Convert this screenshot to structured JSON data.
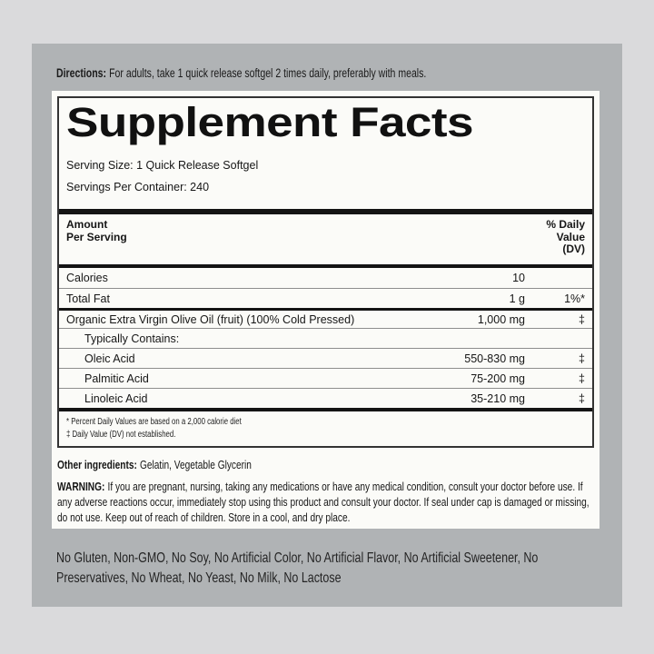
{
  "colors": {
    "page_background": "#dadadc",
    "panel_background": "#b0b3b5",
    "label_background": "#fbfbf8",
    "ink": "#141414",
    "hairline": "#8e8e8e"
  },
  "directions": {
    "label": "Directions:",
    "text": "For adults, take 1 quick release softgel 2 times daily, preferably with meals."
  },
  "label": {
    "title": "Supplement Facts",
    "serving_size": "Serving Size: 1 Quick Release Softgel",
    "servings_per_container": "Servings Per Container: 240",
    "header": {
      "amount_line1": "Amount",
      "amount_line2": "Per Serving",
      "dv_line1": "% Daily",
      "dv_line2": "Value",
      "dv_line3": "(DV)"
    },
    "rows": [
      {
        "name": "Calories",
        "amount": "10",
        "dv": ""
      },
      {
        "name": "Total Fat",
        "amount": "1 g",
        "dv": "1%*"
      },
      {
        "name": "Organic Extra Virgin Olive Oil (fruit) (100% Cold Pressed)",
        "amount": "1,000 mg",
        "dv": "‡"
      },
      {
        "name": "Typically Contains:",
        "amount": "",
        "dv": ""
      },
      {
        "name": "Oleic Acid",
        "amount": "550-830 mg",
        "dv": "‡"
      },
      {
        "name": "Palmitic Acid",
        "amount": "75-200 mg",
        "dv": "‡"
      },
      {
        "name": "Linoleic Acid",
        "amount": "35-210 mg",
        "dv": "‡"
      }
    ],
    "footnotes": [
      "* Percent Daily Values are based on a 2,000 calorie diet",
      "‡ Daily Value (DV) not established."
    ],
    "other_ingredients": {
      "label": "Other ingredients:",
      "text": "Gelatin, Vegetable Glycerin"
    },
    "warning": {
      "label": "WARNING:",
      "text": "If you are pregnant, nursing, taking any medications or have any medical condition, consult your doctor before use. If any adverse reactions occur, immediately stop using this product and consult your doctor. If seal under cap is damaged or missing, do not use. Keep out of reach of children. Store in a cool, and dry place."
    }
  },
  "claims": "No Gluten, Non-GMO, No Soy, No Artificial Color, No Artificial Flavor, No Artificial Sweetener, No Preservatives, No Wheat, No Yeast, No Milk, No Lactose"
}
